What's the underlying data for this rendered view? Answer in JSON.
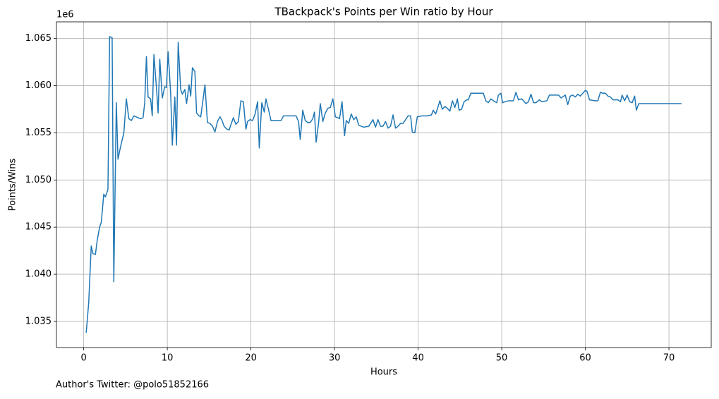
{
  "chart_data": {
    "type": "line",
    "title": "TBackpack's Points per Win ratio by Hour",
    "x_label": "Hours",
    "y_label": "Points/Wins",
    "y_offset_label": "1e6",
    "annotation": "Author's Twitter: @polo51852166",
    "color": "#1f77b4",
    "grid": true,
    "xlim": [
      -3.26,
      75.06
    ],
    "xticks": [
      0,
      10,
      20,
      30,
      40,
      50,
      60,
      70
    ],
    "ylim": [
      1.03223,
      1.06677
    ],
    "yticks": [
      1.035,
      {
        "value": 1.04,
        "label": "1.040"
      },
      1.045,
      {
        "value": 1.05,
        "label": "1.050"
      },
      1.055,
      {
        "value": 1.06,
        "label": "1.060"
      },
      1.065
    ],
    "x": [
      0.3,
      0.6,
      0.9,
      1.1,
      1.4,
      1.6,
      1.9,
      2.1,
      2.4,
      2.6,
      2.9,
      3.1,
      3.4,
      3.6,
      3.9,
      4.1,
      4.4,
      4.8,
      5.1,
      5.4,
      5.7,
      6.0,
      6.5,
      6.8,
      7.1,
      7.3,
      7.5,
      7.7,
      8.0,
      8.2,
      8.4,
      8.7,
      8.9,
      9.1,
      9.4,
      9.7,
      9.9,
      10.1,
      10.4,
      10.6,
      10.9,
      11.1,
      11.3,
      11.6,
      11.8,
      12.1,
      12.3,
      12.6,
      12.8,
      13.0,
      13.3,
      13.5,
      13.8,
      14.0,
      14.3,
      14.5,
      14.8,
      15.1,
      15.4,
      15.7,
      16.0,
      16.3,
      16.5,
      16.8,
      17.1,
      17.4,
      17.7,
      17.9,
      18.2,
      18.5,
      18.8,
      19.1,
      19.4,
      19.6,
      19.9,
      20.2,
      20.5,
      20.8,
      21.0,
      21.3,
      21.6,
      21.8,
      22.1,
      22.4,
      23.0,
      23.6,
      23.9,
      24.5,
      25.4,
      25.7,
      25.9,
      26.2,
      26.5,
      26.8,
      27.1,
      27.4,
      27.6,
      27.8,
      28.1,
      28.3,
      28.6,
      28.9,
      29.2,
      29.5,
      29.8,
      30.1,
      30.4,
      30.6,
      30.9,
      31.2,
      31.4,
      31.7,
      32.0,
      32.3,
      32.6,
      32.9,
      33.5,
      34.1,
      34.6,
      34.9,
      35.2,
      35.5,
      35.8,
      36.1,
      36.4,
      36.7,
      37.0,
      37.3,
      37.6,
      37.9,
      38.2,
      38.5,
      38.8,
      39.1,
      39.3,
      39.6,
      39.9,
      40.5,
      41.1,
      41.6,
      41.8,
      42.1,
      42.4,
      42.6,
      42.9,
      43.2,
      43.5,
      43.8,
      44.1,
      44.4,
      44.7,
      44.9,
      45.2,
      45.5,
      45.8,
      46.0,
      46.3,
      47.0,
      47.8,
      48.1,
      48.4,
      48.7,
      49.0,
      49.4,
      49.6,
      49.9,
      50.1,
      50.4,
      50.8,
      51.4,
      51.7,
      52.0,
      52.4,
      52.6,
      52.9,
      53.2,
      53.5,
      53.8,
      54.1,
      54.5,
      54.8,
      55.4,
      55.7,
      56.4,
      56.8,
      57.1,
      57.6,
      57.9,
      58.2,
      58.5,
      58.8,
      59.1,
      59.4,
      59.7,
      60.0,
      60.2,
      60.5,
      61.2,
      61.5,
      61.8,
      62.1,
      62.4,
      62.7,
      63.0,
      63.3,
      63.6,
      63.9,
      64.2,
      64.4,
      64.7,
      65.0,
      65.3,
      65.6,
      65.9,
      66.1,
      66.4,
      66.7,
      71.5
    ],
    "values": [
      1.0338,
      1.037,
      1.043,
      1.0422,
      1.0421,
      1.0435,
      1.045,
      1.0455,
      1.0485,
      1.0482,
      1.049,
      1.0652,
      1.0651,
      1.0392,
      1.0582,
      1.0522,
      1.0535,
      1.055,
      1.0586,
      1.0565,
      1.0563,
      1.0568,
      1.0566,
      1.0565,
      1.0566,
      1.0582,
      1.0631,
      1.0588,
      1.0586,
      1.0568,
      1.0633,
      1.0598,
      1.0571,
      1.0628,
      1.0587,
      1.0599,
      1.0598,
      1.0636,
      1.0592,
      1.0537,
      1.0588,
      1.0537,
      1.0646,
      1.0596,
      1.0591,
      1.0596,
      1.0581,
      1.0601,
      1.0589,
      1.0619,
      1.0615,
      1.0571,
      1.0568,
      1.0567,
      1.0587,
      1.0601,
      1.0561,
      1.056,
      1.0557,
      1.0551,
      1.0562,
      1.0567,
      1.0564,
      1.0557,
      1.0554,
      1.0553,
      1.0561,
      1.0566,
      1.0559,
      1.0562,
      1.0584,
      1.0583,
      1.0554,
      1.0562,
      1.0564,
      1.0563,
      1.057,
      1.0583,
      1.0534,
      1.0582,
      1.0572,
      1.0586,
      1.0575,
      1.0563,
      1.0563,
      1.0563,
      1.0568,
      1.0568,
      1.0568,
      1.0562,
      1.0543,
      1.0574,
      1.0563,
      1.0561,
      1.0561,
      1.0565,
      1.0572,
      1.054,
      1.0561,
      1.0581,
      1.0562,
      1.0571,
      1.0576,
      1.0577,
      1.0586,
      1.0567,
      1.0566,
      1.0565,
      1.0583,
      1.0547,
      1.0563,
      1.056,
      1.057,
      1.0564,
      1.0567,
      1.0558,
      1.0556,
      1.0557,
      1.0564,
      1.0556,
      1.0564,
      1.0557,
      1.0557,
      1.0562,
      1.0555,
      1.0557,
      1.0569,
      1.0555,
      1.0557,
      1.056,
      1.056,
      1.0564,
      1.0568,
      1.0568,
      1.0551,
      1.055,
      1.0567,
      1.0568,
      1.0568,
      1.0569,
      1.0574,
      1.057,
      1.0578,
      1.0584,
      1.0575,
      1.0578,
      1.0576,
      1.0573,
      1.0584,
      1.0577,
      1.0586,
      1.0574,
      1.0575,
      1.0583,
      1.0585,
      1.0585,
      1.0592,
      1.0592,
      1.0592,
      1.0584,
      1.0582,
      1.0586,
      1.0584,
      1.0582,
      1.059,
      1.0592,
      1.0582,
      1.0583,
      1.0584,
      1.0584,
      1.0593,
      1.0585,
      1.0586,
      1.0584,
      1.0581,
      1.0583,
      1.0591,
      1.0582,
      1.0582,
      1.0585,
      1.0583,
      1.0584,
      1.059,
      1.059,
      1.059,
      1.0587,
      1.059,
      1.058,
      1.0589,
      1.059,
      1.0588,
      1.0591,
      1.0589,
      1.0592,
      1.0595,
      1.0594,
      1.0585,
      1.0584,
      1.0584,
      1.0593,
      1.0592,
      1.0592,
      1.0589,
      1.0588,
      1.0585,
      1.0585,
      1.0585,
      1.0583,
      1.059,
      1.0584,
      1.059,
      1.0583,
      1.0582,
      1.0589,
      1.0574,
      1.0581,
      1.0581,
      1.0581
    ]
  }
}
